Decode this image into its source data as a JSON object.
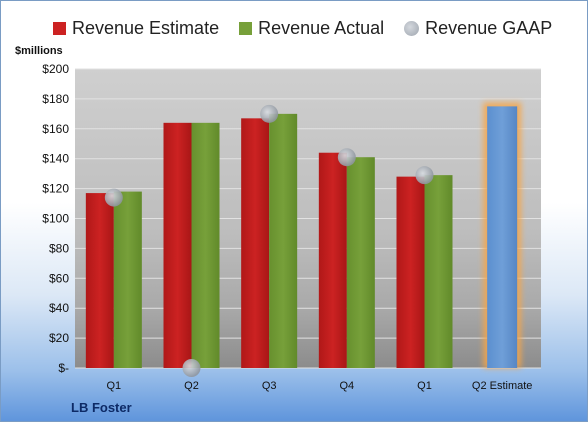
{
  "legend": {
    "estimate": "Revenue Estimate",
    "actual": "Revenue Actual",
    "gaap": "Revenue GAAP"
  },
  "unit_label": "$millions",
  "company": "LB Foster",
  "colors": {
    "estimate": "#cc2222",
    "actual": "#77a03a",
    "gaap": "#a9afb7",
    "projected": "#6f9fd8",
    "projected_glow": "#f5a64a"
  },
  "chart_data": {
    "type": "bar",
    "categories": [
      "Q1",
      "Q2",
      "Q3",
      "Q4",
      "Q1",
      "Q2 Estimate"
    ],
    "series": [
      {
        "name": "Revenue Estimate",
        "values": [
          117,
          164,
          167,
          144,
          128,
          null
        ]
      },
      {
        "name": "Revenue Actual",
        "values": [
          118,
          164,
          170,
          141,
          129,
          null
        ]
      },
      {
        "name": "Revenue GAAP",
        "values": [
          114,
          0,
          170,
          141,
          129,
          null
        ]
      }
    ],
    "projected": {
      "category": "Q2 Estimate",
      "value": 175
    },
    "ylim": [
      0,
      200
    ],
    "yticks": [
      0,
      20,
      40,
      60,
      80,
      100,
      120,
      140,
      160,
      180,
      200
    ],
    "ytick_labels": [
      "$-",
      "$20",
      "$40",
      "$60",
      "$80",
      "$100",
      "$120",
      "$140",
      "$160",
      "$180",
      "$200"
    ],
    "ylabel": "$millions",
    "grid": true,
    "legend_position": "top"
  }
}
